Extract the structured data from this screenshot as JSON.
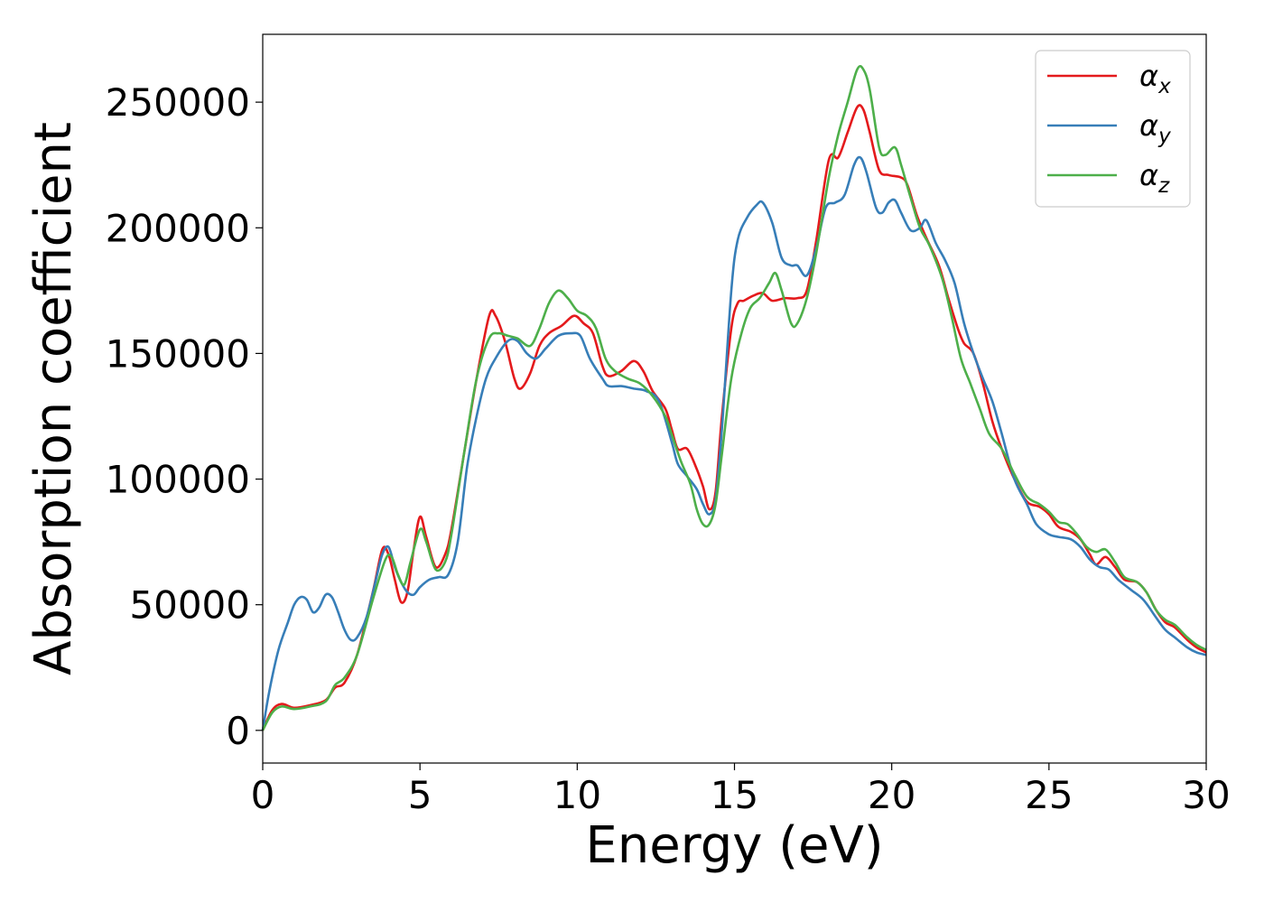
{
  "chart_data": {
    "type": "line",
    "title": "",
    "xlabel": "Energy (eV)",
    "ylabel": "Absorption coefficient",
    "xlim": [
      0,
      30
    ],
    "ylim": [
      -13000,
      277000
    ],
    "xticks": [
      0,
      5,
      10,
      15,
      20,
      25,
      30
    ],
    "yticks": [
      0,
      50000,
      100000,
      150000,
      200000,
      250000
    ],
    "grid": false,
    "legend_position": "top-right",
    "series": [
      {
        "name": "α",
        "subscript": "x",
        "color": "#e41a1c",
        "points": [
          [
            0,
            0
          ],
          [
            0.3,
            8000
          ],
          [
            0.6,
            10500
          ],
          [
            1.0,
            9000
          ],
          [
            1.5,
            10000
          ],
          [
            2.0,
            12000
          ],
          [
            2.3,
            17000
          ],
          [
            2.6,
            19000
          ],
          [
            3.0,
            30000
          ],
          [
            3.5,
            55000
          ],
          [
            3.8,
            72000
          ],
          [
            4.0,
            70000
          ],
          [
            4.2,
            60000
          ],
          [
            4.4,
            51000
          ],
          [
            4.6,
            55000
          ],
          [
            4.8,
            72000
          ],
          [
            5.0,
            85000
          ],
          [
            5.2,
            77000
          ],
          [
            5.5,
            65000
          ],
          [
            5.8,
            70000
          ],
          [
            6.0,
            80000
          ],
          [
            6.4,
            110000
          ],
          [
            6.8,
            140000
          ],
          [
            7.2,
            165000
          ],
          [
            7.4,
            165000
          ],
          [
            7.7,
            155000
          ],
          [
            8.0,
            140000
          ],
          [
            8.2,
            136000
          ],
          [
            8.5,
            142000
          ],
          [
            8.8,
            153000
          ],
          [
            9.1,
            158000
          ],
          [
            9.5,
            161000
          ],
          [
            9.9,
            165000
          ],
          [
            10.2,
            162000
          ],
          [
            10.5,
            158000
          ],
          [
            10.8,
            145000
          ],
          [
            11.0,
            141000
          ],
          [
            11.4,
            143000
          ],
          [
            11.8,
            147000
          ],
          [
            12.1,
            143000
          ],
          [
            12.4,
            135000
          ],
          [
            12.8,
            128000
          ],
          [
            13.0,
            120000
          ],
          [
            13.2,
            112000
          ],
          [
            13.5,
            112000
          ],
          [
            13.8,
            104000
          ],
          [
            14.0,
            97000
          ],
          [
            14.2,
            88000
          ],
          [
            14.4,
            95000
          ],
          [
            14.6,
            125000
          ],
          [
            14.9,
            160000
          ],
          [
            15.1,
            170000
          ],
          [
            15.3,
            171000
          ],
          [
            15.6,
            173000
          ],
          [
            15.9,
            174000
          ],
          [
            16.2,
            171000
          ],
          [
            16.6,
            172000
          ],
          [
            17.0,
            172000
          ],
          [
            17.3,
            175000
          ],
          [
            17.6,
            195000
          ],
          [
            18.0,
            227000
          ],
          [
            18.3,
            228000
          ],
          [
            18.6,
            238000
          ],
          [
            18.9,
            248000
          ],
          [
            19.1,
            247000
          ],
          [
            19.3,
            238000
          ],
          [
            19.6,
            223000
          ],
          [
            19.9,
            221000
          ],
          [
            20.3,
            220000
          ],
          [
            20.5,
            217000
          ],
          [
            20.8,
            205000
          ],
          [
            21.1,
            196000
          ],
          [
            21.5,
            185000
          ],
          [
            21.8,
            172000
          ],
          [
            22.1,
            160000
          ],
          [
            22.3,
            154000
          ],
          [
            22.6,
            150000
          ],
          [
            22.9,
            138000
          ],
          [
            23.2,
            123000
          ],
          [
            23.5,
            112000
          ],
          [
            23.9,
            100000
          ],
          [
            24.3,
            91000
          ],
          [
            24.7,
            89000
          ],
          [
            25.0,
            86000
          ],
          [
            25.3,
            81000
          ],
          [
            25.7,
            79000
          ],
          [
            26.0,
            76000
          ],
          [
            26.3,
            70000
          ],
          [
            26.5,
            66000
          ],
          [
            26.8,
            69000
          ],
          [
            27.1,
            65000
          ],
          [
            27.4,
            60000
          ],
          [
            27.8,
            59000
          ],
          [
            28.1,
            55000
          ],
          [
            28.4,
            48000
          ],
          [
            28.7,
            43000
          ],
          [
            29.0,
            41000
          ],
          [
            29.4,
            36000
          ],
          [
            29.7,
            33000
          ],
          [
            30.0,
            31000
          ]
        ]
      },
      {
        "name": "α",
        "subscript": "y",
        "color": "#377eb8",
        "points": [
          [
            0,
            0
          ],
          [
            0.2,
            15000
          ],
          [
            0.5,
            32000
          ],
          [
            0.8,
            43000
          ],
          [
            1.0,
            50000
          ],
          [
            1.2,
            53000
          ],
          [
            1.4,
            52000
          ],
          [
            1.6,
            47000
          ],
          [
            1.8,
            49000
          ],
          [
            2.0,
            54000
          ],
          [
            2.2,
            53000
          ],
          [
            2.4,
            47000
          ],
          [
            2.6,
            40000
          ],
          [
            2.8,
            36000
          ],
          [
            3.0,
            37000
          ],
          [
            3.3,
            45000
          ],
          [
            3.6,
            60000
          ],
          [
            3.8,
            70000
          ],
          [
            4.0,
            73000
          ],
          [
            4.2,
            65000
          ],
          [
            4.4,
            59000
          ],
          [
            4.6,
            55000
          ],
          [
            4.8,
            54000
          ],
          [
            5.0,
            57000
          ],
          [
            5.3,
            60000
          ],
          [
            5.6,
            61000
          ],
          [
            5.9,
            62000
          ],
          [
            6.2,
            75000
          ],
          [
            6.5,
            105000
          ],
          [
            6.8,
            125000
          ],
          [
            7.1,
            140000
          ],
          [
            7.4,
            148000
          ],
          [
            7.8,
            155000
          ],
          [
            8.1,
            155000
          ],
          [
            8.4,
            150000
          ],
          [
            8.7,
            148000
          ],
          [
            9.0,
            152000
          ],
          [
            9.4,
            157000
          ],
          [
            9.8,
            158000
          ],
          [
            10.1,
            157000
          ],
          [
            10.4,
            148000
          ],
          [
            10.8,
            140000
          ],
          [
            11.0,
            137000
          ],
          [
            11.4,
            137000
          ],
          [
            11.8,
            136000
          ],
          [
            12.2,
            135000
          ],
          [
            12.6,
            131000
          ],
          [
            13.0,
            115000
          ],
          [
            13.2,
            106000
          ],
          [
            13.5,
            101000
          ],
          [
            13.8,
            96000
          ],
          [
            14.0,
            90000
          ],
          [
            14.2,
            86000
          ],
          [
            14.4,
            92000
          ],
          [
            14.6,
            120000
          ],
          [
            14.9,
            175000
          ],
          [
            15.1,
            195000
          ],
          [
            15.4,
            204000
          ],
          [
            15.7,
            209000
          ],
          [
            15.9,
            210000
          ],
          [
            16.2,
            202000
          ],
          [
            16.5,
            188000
          ],
          [
            16.8,
            185000
          ],
          [
            17.0,
            185000
          ],
          [
            17.3,
            181000
          ],
          [
            17.6,
            192000
          ],
          [
            17.9,
            208000
          ],
          [
            18.2,
            210000
          ],
          [
            18.5,
            213000
          ],
          [
            18.8,
            225000
          ],
          [
            19.0,
            228000
          ],
          [
            19.2,
            222000
          ],
          [
            19.5,
            208000
          ],
          [
            19.7,
            206000
          ],
          [
            19.9,
            210000
          ],
          [
            20.1,
            211000
          ],
          [
            20.3,
            206000
          ],
          [
            20.6,
            199000
          ],
          [
            20.9,
            200000
          ],
          [
            21.1,
            203000
          ],
          [
            21.4,
            194000
          ],
          [
            21.7,
            187000
          ],
          [
            22.0,
            178000
          ],
          [
            22.3,
            162000
          ],
          [
            22.6,
            150000
          ],
          [
            22.9,
            140000
          ],
          [
            23.2,
            131000
          ],
          [
            23.5,
            118000
          ],
          [
            23.9,
            100000
          ],
          [
            24.3,
            90000
          ],
          [
            24.6,
            82000
          ],
          [
            25.0,
            78000
          ],
          [
            25.3,
            77000
          ],
          [
            25.7,
            76000
          ],
          [
            26.0,
            73000
          ],
          [
            26.3,
            68000
          ],
          [
            26.6,
            65000
          ],
          [
            26.9,
            64000
          ],
          [
            27.2,
            60000
          ],
          [
            27.6,
            56000
          ],
          [
            28.0,
            52000
          ],
          [
            28.4,
            45000
          ],
          [
            28.7,
            40000
          ],
          [
            29.0,
            37000
          ],
          [
            29.4,
            33000
          ],
          [
            29.7,
            31000
          ],
          [
            30.0,
            30000
          ]
        ]
      },
      {
        "name": "α",
        "subscript": "z",
        "color": "#4daf4a",
        "points": [
          [
            0,
            0
          ],
          [
            0.3,
            7000
          ],
          [
            0.6,
            9500
          ],
          [
            1.0,
            8500
          ],
          [
            1.5,
            9500
          ],
          [
            2.0,
            11500
          ],
          [
            2.3,
            18000
          ],
          [
            2.6,
            21000
          ],
          [
            3.0,
            30000
          ],
          [
            3.5,
            52000
          ],
          [
            3.9,
            68000
          ],
          [
            4.1,
            69000
          ],
          [
            4.3,
            62000
          ],
          [
            4.5,
            58000
          ],
          [
            4.7,
            67000
          ],
          [
            5.0,
            80000
          ],
          [
            5.2,
            75000
          ],
          [
            5.5,
            64000
          ],
          [
            5.8,
            67000
          ],
          [
            6.0,
            78000
          ],
          [
            6.4,
            110000
          ],
          [
            6.8,
            140000
          ],
          [
            7.2,
            156000
          ],
          [
            7.5,
            158000
          ],
          [
            7.8,
            157000
          ],
          [
            8.1,
            156000
          ],
          [
            8.5,
            153000
          ],
          [
            8.8,
            160000
          ],
          [
            9.1,
            170000
          ],
          [
            9.4,
            175000
          ],
          [
            9.7,
            172000
          ],
          [
            10.0,
            167000
          ],
          [
            10.3,
            165000
          ],
          [
            10.6,
            160000
          ],
          [
            10.9,
            148000
          ],
          [
            11.2,
            143000
          ],
          [
            11.6,
            140000
          ],
          [
            12.0,
            138000
          ],
          [
            12.4,
            133000
          ],
          [
            12.8,
            125000
          ],
          [
            13.0,
            118000
          ],
          [
            13.3,
            107000
          ],
          [
            13.6,
            98000
          ],
          [
            13.8,
            88000
          ],
          [
            14.0,
            82000
          ],
          [
            14.2,
            82000
          ],
          [
            14.4,
            90000
          ],
          [
            14.6,
            110000
          ],
          [
            14.9,
            140000
          ],
          [
            15.2,
            157000
          ],
          [
            15.5,
            168000
          ],
          [
            15.8,
            172000
          ],
          [
            16.1,
            178000
          ],
          [
            16.3,
            182000
          ],
          [
            16.5,
            175000
          ],
          [
            16.8,
            162000
          ],
          [
            17.0,
            162000
          ],
          [
            17.3,
            172000
          ],
          [
            17.6,
            190000
          ],
          [
            18.0,
            220000
          ],
          [
            18.3,
            237000
          ],
          [
            18.6,
            250000
          ],
          [
            18.9,
            263000
          ],
          [
            19.1,
            263000
          ],
          [
            19.3,
            255000
          ],
          [
            19.6,
            232000
          ],
          [
            19.8,
            229000
          ],
          [
            20.1,
            232000
          ],
          [
            20.3,
            225000
          ],
          [
            20.6,
            212000
          ],
          [
            20.9,
            200000
          ],
          [
            21.2,
            193000
          ],
          [
            21.6,
            180000
          ],
          [
            21.9,
            165000
          ],
          [
            22.2,
            148000
          ],
          [
            22.5,
            138000
          ],
          [
            22.8,
            128000
          ],
          [
            23.1,
            118000
          ],
          [
            23.5,
            112000
          ],
          [
            23.9,
            102000
          ],
          [
            24.3,
            93000
          ],
          [
            24.7,
            90000
          ],
          [
            25.0,
            87000
          ],
          [
            25.3,
            83000
          ],
          [
            25.6,
            82000
          ],
          [
            25.9,
            78000
          ],
          [
            26.2,
            73000
          ],
          [
            26.5,
            71000
          ],
          [
            26.8,
            72000
          ],
          [
            27.1,
            67000
          ],
          [
            27.4,
            61000
          ],
          [
            27.8,
            59000
          ],
          [
            28.1,
            55000
          ],
          [
            28.4,
            48000
          ],
          [
            28.7,
            44000
          ],
          [
            29.0,
            42000
          ],
          [
            29.4,
            37000
          ],
          [
            29.7,
            34000
          ],
          [
            30.0,
            32000
          ]
        ]
      }
    ]
  }
}
